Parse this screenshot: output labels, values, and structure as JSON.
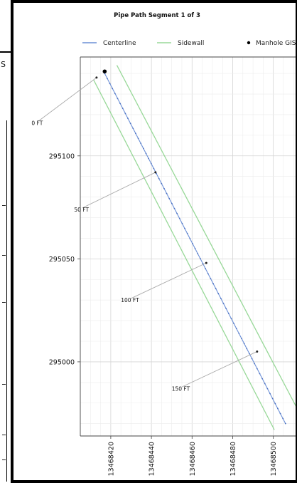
{
  "background_window": {
    "peek_text": "S"
  },
  "chart_data": {
    "type": "line",
    "title": "Pipe Path Segment 1 of 3",
    "xlabel": "",
    "ylabel": "",
    "xlim": [
      13468405,
      13468512
    ],
    "ylim": [
      294964,
      295148
    ],
    "x_ticks": [
      13468420,
      13468440,
      13468460,
      13468480,
      13468500
    ],
    "y_ticks": [
      295000,
      295050,
      295100
    ],
    "grid": true,
    "legend": {
      "placement": "top",
      "entries": [
        {
          "name": "Centerline",
          "color": "#6b8fd6",
          "style": "line"
        },
        {
          "name": "Sidewall",
          "color": "#98d898",
          "style": "line"
        },
        {
          "name": "Manhole GIS",
          "color": "#000000",
          "style": "marker"
        }
      ]
    },
    "series": [
      {
        "name": "Centerline",
        "color": "#6b8fd6",
        "points": [
          [
            13468417,
            295140
          ],
          [
            13468506,
            294970
          ]
        ]
      },
      {
        "name": "Sidewall",
        "color": "#98d898",
        "points": [
          [
            13468411.5,
            295137
          ],
          [
            13468500.5,
            294967
          ]
        ]
      },
      {
        "name": "Sidewall",
        "color": "#98d898",
        "points": [
          [
            13468423,
            295144
          ],
          [
            13468513.5,
            294974
          ]
        ]
      }
    ],
    "manhole": {
      "name": "Manhole GIS",
      "x": 13468417,
      "y": 295141
    },
    "annotations": [
      {
        "label": "0 FT",
        "x": 13468413,
        "y": 295138,
        "text_x": 13468381,
        "text_y": 295115
      },
      {
        "label": "50 FT",
        "x": 13468442,
        "y": 295092,
        "text_x": 13468402,
        "text_y": 295073
      },
      {
        "label": "100 FT",
        "x": 13468467,
        "y": 295048,
        "text_x": 13468425,
        "text_y": 295029
      },
      {
        "label": "150 FT",
        "x": 13468492,
        "y": 295005,
        "text_x": 13468450,
        "text_y": 294986
      }
    ]
  }
}
